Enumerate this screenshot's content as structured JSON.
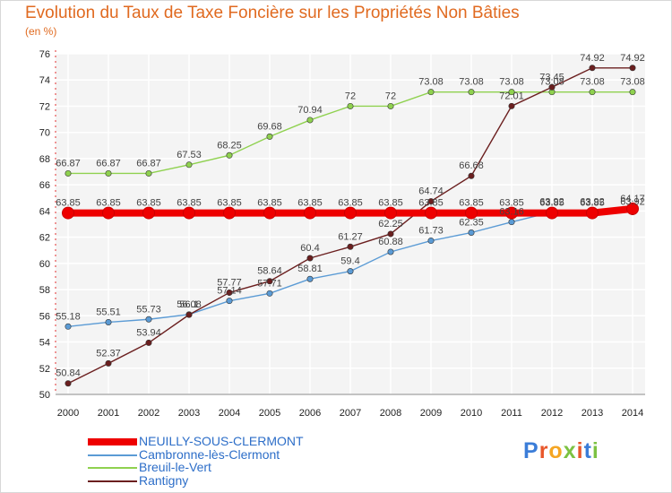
{
  "title": "Evolution du Taux de Taxe Foncière sur les Propriétés Non Bâties",
  "unit": "(en %)",
  "logo": {
    "text": "Proxiti",
    "letter_colors": [
      "#3b7dd8",
      "#e8562a",
      "#f5a623",
      "#7cc242",
      "#e8562a",
      "#3b7dd8",
      "#7cc242"
    ]
  },
  "chart_data": {
    "type": "line",
    "categories": [
      "2000",
      "2001",
      "2002",
      "2003",
      "2004",
      "2005",
      "2006",
      "2007",
      "2008",
      "2009",
      "2010",
      "2011",
      "2012",
      "2013",
      "2014"
    ],
    "ylim": [
      50,
      76
    ],
    "yticks": [
      "50",
      "52",
      "54",
      "56",
      "58",
      "60",
      "62",
      "64",
      "66",
      "68",
      "70",
      "72",
      "74",
      "76"
    ],
    "grid": true,
    "series": [
      {
        "name": "NEUILLY-SOUS-CLERMONT",
        "color": "#ee0000",
        "values": [
          63.85,
          63.85,
          63.85,
          63.85,
          63.85,
          63.85,
          63.85,
          63.85,
          63.85,
          63.85,
          63.85,
          63.85,
          63.85,
          63.85,
          64.17
        ],
        "labels": [
          "63.85",
          "63.85",
          "63.85",
          "63.85",
          "63.85",
          "63.85",
          "63.85",
          "63.85",
          "63.85",
          "63.85",
          "63.85",
          "63.85",
          "63.85",
          "63.85",
          "64.17"
        ]
      },
      {
        "name": "Cambronne-lès-Clermont",
        "color": "#5b9bd5",
        "values": [
          55.18,
          55.51,
          55.73,
          56.1,
          57.14,
          57.71,
          58.81,
          59.4,
          60.88,
          61.73,
          62.35,
          63.16,
          63.92,
          63.92,
          63.92
        ],
        "labels": [
          "55.18",
          "55.51",
          "55.73",
          "56.1",
          "57.14",
          "57.71",
          "58.81",
          "59.4",
          "60.88",
          "61.73",
          "62.35",
          "63.16",
          "63.92",
          "63.92",
          "63.92"
        ]
      },
      {
        "name": "Breuil-le-Vert",
        "color": "#8fd14f",
        "values": [
          66.87,
          66.87,
          66.87,
          67.53,
          68.25,
          69.68,
          70.94,
          72,
          72,
          73.08,
          73.08,
          73.08,
          73.08,
          73.08,
          73.08
        ],
        "labels": [
          "66.87",
          "66.87",
          "66.87",
          "67.53",
          "68.25",
          "69.68",
          "70.94",
          "72",
          "72",
          "73.08",
          "73.08",
          "73.08",
          "73.08",
          "73.08",
          "73.08"
        ]
      },
      {
        "name": "Rantigny",
        "color": "#6b1f1f",
        "values": [
          50.84,
          52.37,
          53.94,
          56.08,
          57.77,
          58.64,
          60.4,
          61.27,
          62.25,
          64.74,
          66.68,
          72.01,
          73.45,
          74.92,
          74.92
        ],
        "labels": [
          "50.84",
          "52.37",
          "53.94",
          "56.08",
          "57.77",
          "58.64",
          "60.4",
          "61.27",
          "62.25",
          "64.74",
          "66.68",
          "72.01",
          "73.45",
          "74.92",
          "74.92"
        ]
      }
    ]
  }
}
